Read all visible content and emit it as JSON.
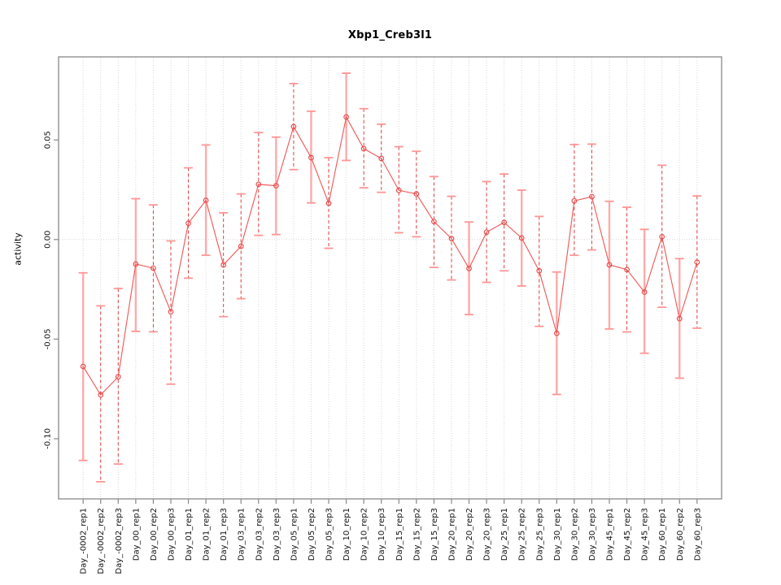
{
  "title": "Xbp1_Creb3l1",
  "chart_data": {
    "type": "line",
    "title": "Xbp1_Creb3l1",
    "xlabel": "",
    "ylabel": "activity",
    "legend": "none",
    "grid": "dotted vertical gridline at every x position; dotted horizontal line at y=0",
    "categories": [
      "Day_-0002_rep1",
      "Day_-0002_rep2",
      "Day_-0002_rep3",
      "Day_00_rep1",
      "Day_00_rep2",
      "Day_00_rep3",
      "Day_01_rep1",
      "Day_01_rep2",
      "Day_01_rep3",
      "Day_03_rep1",
      "Day_03_rep2",
      "Day_03_rep3",
      "Day_05_rep1",
      "Day_05_rep2",
      "Day_05_rep3",
      "Day_10_rep1",
      "Day_10_rep2",
      "Day_10_rep3",
      "Day_15_rep1",
      "Day_15_rep2",
      "Day_15_rep3",
      "Day_20_rep1",
      "Day_20_rep2",
      "Day_20_rep3",
      "Day_25_rep1",
      "Day_25_rep2",
      "Day_25_rep3",
      "Day_30_rep1",
      "Day_30_rep2",
      "Day_30_rep3",
      "Day_45_rep1",
      "Day_45_rep2",
      "Day_45_rep3",
      "Day_60_rep1",
      "Day_60_rep2",
      "Day_60_rep3"
    ],
    "series": [
      {
        "name": "activity",
        "values": [
          -0.0637,
          -0.078,
          -0.0689,
          -0.0123,
          -0.0144,
          -0.0363,
          0.0082,
          0.0197,
          -0.0127,
          -0.0034,
          0.0277,
          0.027,
          0.0567,
          0.0411,
          0.0182,
          0.0615,
          0.0456,
          0.0407,
          0.0247,
          0.0229,
          0.009,
          0.0005,
          -0.0145,
          0.0037,
          0.0086,
          0.0008,
          -0.0157,
          -0.0471,
          0.0194,
          0.0215,
          -0.0127,
          -0.0151,
          -0.0264,
          0.0014,
          -0.0397,
          -0.0114
        ],
        "error_low": [
          -0.1109,
          -0.1216,
          -0.1127,
          -0.0461,
          -0.0463,
          -0.0726,
          -0.0194,
          -0.0079,
          -0.0387,
          -0.0297,
          0.0021,
          0.0025,
          0.0351,
          0.0184,
          -0.0044,
          0.0397,
          0.026,
          0.0237,
          0.0034,
          0.0014,
          -0.014,
          -0.0203,
          -0.0377,
          -0.0215,
          -0.0157,
          -0.0233,
          -0.0436,
          -0.0778,
          -0.0079,
          -0.0052,
          -0.0449,
          -0.0464,
          -0.0571,
          -0.034,
          -0.0696,
          -0.0445
        ],
        "error_high": [
          -0.0167,
          -0.0333,
          -0.0246,
          0.0205,
          0.0174,
          -0.0007,
          0.036,
          0.0475,
          0.0134,
          0.0229,
          0.0537,
          0.0514,
          0.0783,
          0.0644,
          0.0411,
          0.0835,
          0.0657,
          0.0579,
          0.0466,
          0.0443,
          0.0316,
          0.0217,
          0.0088,
          0.0291,
          0.0329,
          0.0248,
          0.0116,
          -0.0163,
          0.0477,
          0.0479,
          0.0192,
          0.0162,
          0.0051,
          0.0373,
          -0.0096,
          0.0219
        ],
        "error_bar_styles": [
          "solid",
          "dashed",
          "dashed",
          "solid",
          "dashed",
          "dashed",
          "dashed",
          "solid",
          "dashed",
          "dashed",
          "dashed",
          "solid",
          "dashed",
          "solid",
          "dashed",
          "solid",
          "dashed",
          "dashed",
          "dashed",
          "dashed",
          "dashed",
          "dashed",
          "solid",
          "dashed",
          "dashed",
          "solid",
          "dashed",
          "solid",
          "dashed",
          "dashed",
          "solid",
          "dashed",
          "solid",
          "dashed",
          "solid",
          "dashed"
        ]
      }
    ],
    "yticks": [
      -0.1,
      -0.05,
      0.0,
      0.05
    ],
    "ytick_labels": [
      "-0.10",
      "-0.05",
      "0.00",
      "0.05"
    ],
    "ylim": [
      -0.1302,
      0.0917
    ],
    "xlim": [
      -0.4,
      37.4
    ],
    "colors": {
      "series_line": "#f05b5b",
      "point_stroke": "#e84a4a",
      "errorbar_solid": "#ffaaaa",
      "errorbar_dashed": "#e04040",
      "errorbar_cap": "#ff9595",
      "gridline": "#d6d6d6",
      "zero_line": "#d6d6d6",
      "axis_box": "#888888",
      "tick": "#888888",
      "text": "#111111",
      "background": "#ffffff"
    }
  }
}
